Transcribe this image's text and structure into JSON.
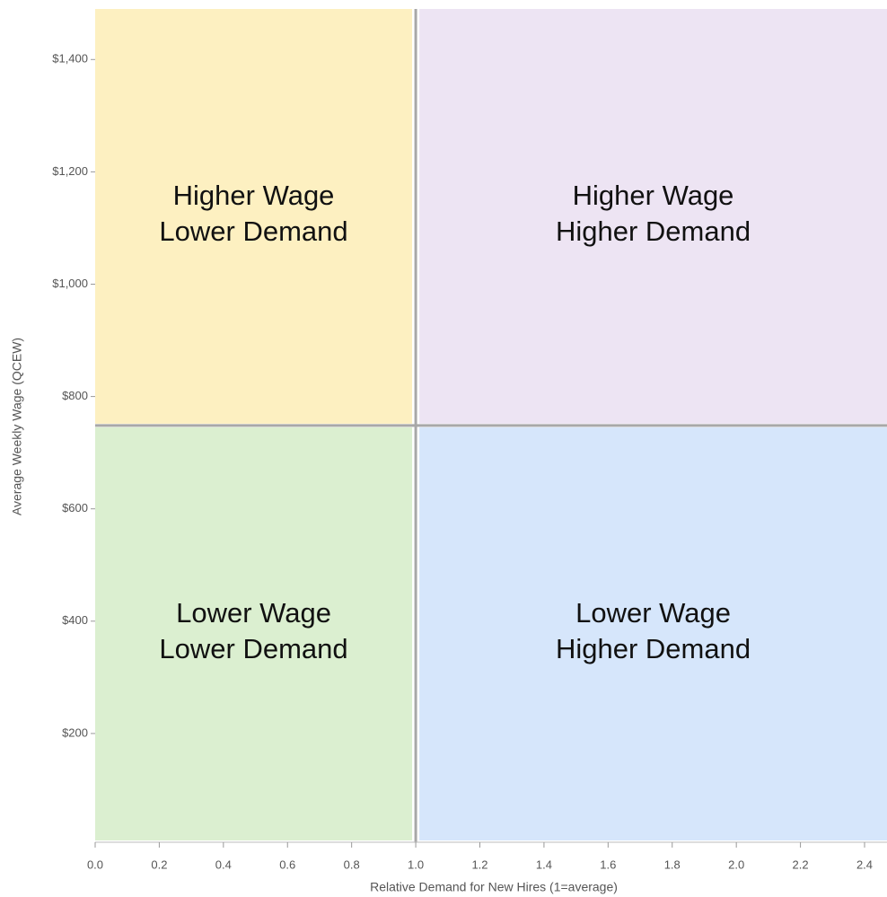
{
  "chart_data": {
    "type": "quadrant",
    "xlabel": "Relative Demand for New Hires (1=average)",
    "ylabel": "Average Weekly Wage (QCEW)",
    "xlim": [
      0,
      2.47
    ],
    "ylim": [
      0,
      1490
    ],
    "xticks": [
      {
        "value": 0,
        "label": "0.0"
      },
      0.2,
      0.4,
      0.6,
      0.8,
      {
        "value": 1,
        "label": "1.0"
      },
      1.2,
      1.4,
      1.6,
      1.8,
      {
        "value": 2,
        "label": "2.0"
      },
      2.2,
      2.4
    ],
    "yticks": [
      {
        "value": 200,
        "label": "$200"
      },
      {
        "value": 400,
        "label": "$400"
      },
      {
        "value": 600,
        "label": "$600"
      },
      {
        "value": 800,
        "label": "$800"
      },
      {
        "value": 1000,
        "label": "$1,000"
      },
      {
        "value": 1200,
        "label": "$1,200"
      },
      {
        "value": 1400,
        "label": "$1,400"
      }
    ],
    "x_divider": 1,
    "y_divider": 750,
    "divider_color": "#a8a8a8",
    "quadrants": [
      {
        "position": "top-left",
        "label": [
          "Higher Wage",
          "Lower Demand"
        ],
        "color": "#fdf0c1"
      },
      {
        "position": "top-right",
        "label": [
          "Higher Wage",
          "Higher Demand"
        ],
        "color": "#ede4f3"
      },
      {
        "position": "bottom-left",
        "label": [
          "Lower Wage",
          "Lower Demand"
        ],
        "color": "#dbefd0"
      },
      {
        "position": "bottom-right",
        "label": [
          "Lower Wage",
          "Higher Demand"
        ],
        "color": "#d6e6fb"
      }
    ]
  }
}
